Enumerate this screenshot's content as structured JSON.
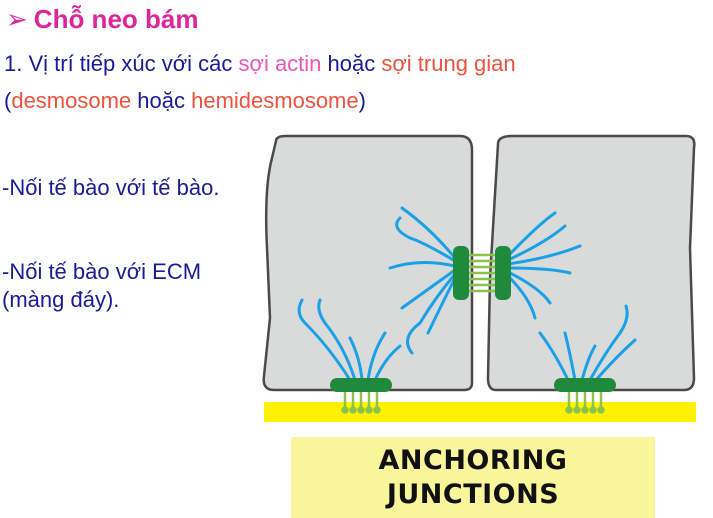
{
  "title": {
    "arrow": "➢",
    "text": "Chỗ neo bám"
  },
  "line1": {
    "prefix": "1. Vị trí tiếp xúc với các ",
    "actin": "sợi actin",
    "middle": " hoặc ",
    "intermediate": "sợi trung gian"
  },
  "line2": {
    "open": "(",
    "desmosome": "desmosome",
    "middle": " hoặc ",
    "hemidesmosome": "hemidesmosome",
    "close": ")"
  },
  "bullets": [
    "-Nối tế bào với tế bào.",
    "-Nối tế bào với ECM (màng đáy)."
  ],
  "label": {
    "line1": "ANCHORING",
    "line2": "JUNCTIONS"
  },
  "colors": {
    "title": "#e0249a",
    "body_text": "#1a1a9c",
    "highlight_red": "#f0503c",
    "highlight_pink": "#ee55b8",
    "cell_fill": "#d8dbd9",
    "filament": "#1aa0e6",
    "junction": "#1f8a3c",
    "linker": "#8bc34a",
    "basal_lamina": "#fff200",
    "label_bg": "#f9f59a"
  }
}
